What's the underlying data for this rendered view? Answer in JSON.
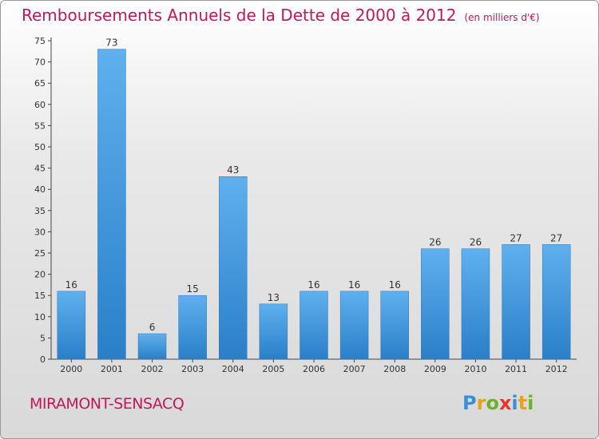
{
  "header": {
    "title": "Remboursements Annuels de la Dette de 2000 à 2012",
    "subtitle": "(en milliers d'€)"
  },
  "footer": {
    "city": "MIRAMONT-SENSACQ",
    "logo_letters": [
      "P",
      "r",
      "o",
      "x",
      "i",
      "t",
      "i"
    ],
    "logo_colors": [
      "#3a8fd9",
      "#e8a020",
      "#6ab42d",
      "#e03a2f",
      "#3a8fd9",
      "#e8a020",
      "#6ab42d"
    ]
  },
  "chart_data": {
    "type": "bar",
    "categories": [
      "2000",
      "2001",
      "2002",
      "2003",
      "2004",
      "2005",
      "2006",
      "2007",
      "2008",
      "2009",
      "2010",
      "2011",
      "2012"
    ],
    "values": [
      16,
      73,
      6,
      15,
      43,
      13,
      16,
      16,
      16,
      26,
      26,
      27,
      27
    ],
    "ylim": [
      0,
      75
    ],
    "yticks": [
      0,
      5,
      10,
      15,
      20,
      25,
      30,
      35,
      40,
      45,
      50,
      55,
      60,
      65,
      70,
      75
    ],
    "grid": false,
    "bar_color": "#3d95db"
  }
}
